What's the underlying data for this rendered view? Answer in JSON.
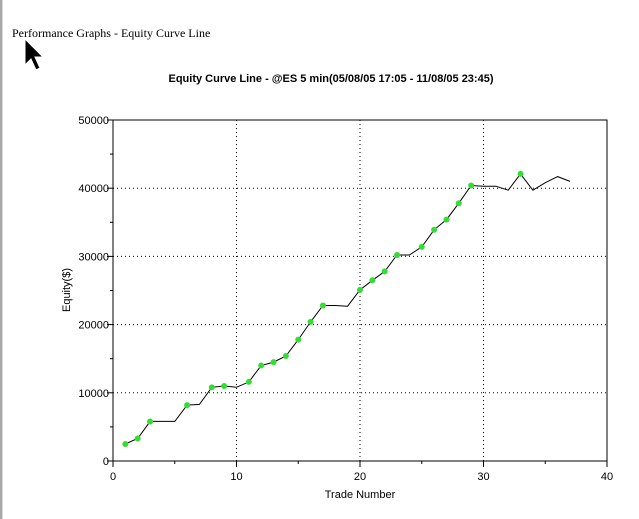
{
  "page": {
    "heading": "Performance Graphs - Equity Curve Line"
  },
  "icons": {
    "cursor": "mouse-pointer-icon"
  },
  "colors": {
    "line": "#000000",
    "marker": "#33dd33",
    "grid": "#000000",
    "background": "#ffffff"
  },
  "chart_data": {
    "type": "line",
    "title": "Equity Curve Line - @ES 5 min(05/08/05 17:05 - 11/08/05 23:45)",
    "xlabel": "Trade Number",
    "ylabel": "Equity($)",
    "xlim": [
      0,
      40
    ],
    "ylim": [
      0,
      50000
    ],
    "x_ticks": [
      0,
      10,
      20,
      30,
      40
    ],
    "y_ticks": [
      0,
      10000,
      20000,
      30000,
      40000,
      50000
    ],
    "grid": true,
    "grid_style": "dotted",
    "legend": "none",
    "series": [
      {
        "x": [
          1,
          2,
          3,
          4,
          5,
          6,
          7,
          8,
          9,
          10,
          11,
          12,
          13,
          14,
          15,
          16,
          17,
          18,
          19,
          20,
          21,
          22,
          23,
          24,
          25,
          26,
          27,
          28,
          29,
          30,
          31,
          32,
          33,
          34,
          35,
          36,
          37
        ],
        "y": [
          2500,
          3300,
          5800,
          5800,
          5800,
          8200,
          8300,
          10800,
          11000,
          10800,
          11600,
          14000,
          14500,
          15400,
          17800,
          20400,
          22800,
          22800,
          22700,
          25100,
          26500,
          27800,
          30200,
          30200,
          31400,
          33900,
          35400,
          37800,
          40400,
          40300,
          40300,
          39700,
          42100,
          39700,
          40800,
          41700,
          41000
        ],
        "markers": [
          true,
          true,
          true,
          false,
          false,
          true,
          false,
          true,
          true,
          false,
          true,
          true,
          true,
          true,
          true,
          true,
          true,
          false,
          false,
          true,
          true,
          true,
          true,
          false,
          true,
          true,
          true,
          true,
          true,
          false,
          false,
          false,
          true,
          false,
          false,
          false,
          false
        ]
      }
    ]
  }
}
